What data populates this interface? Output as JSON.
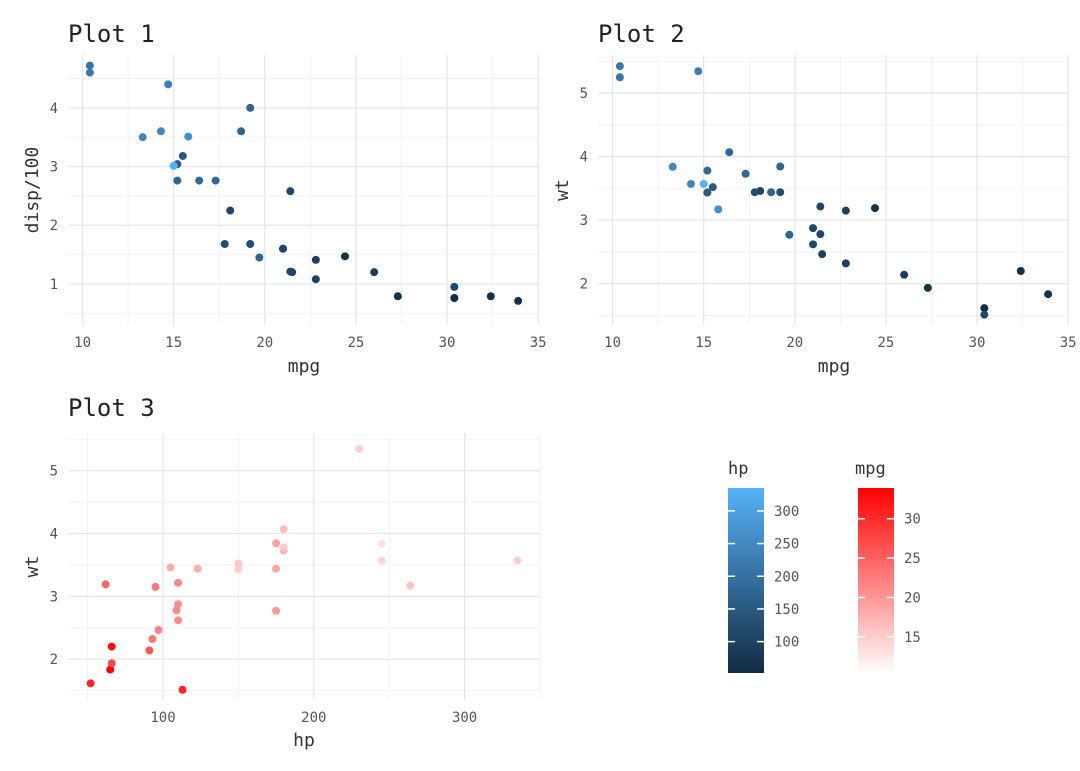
{
  "chart_data": [
    {
      "type": "scatter",
      "title": "Plot 1",
      "xlabel": "mpg",
      "ylabel": "disp/100",
      "xlim": [
        9.2,
        35.1
      ],
      "ylim": [
        0.3,
        4.9
      ],
      "xticks": [
        10,
        15,
        20,
        25,
        30,
        35
      ],
      "yticks": [
        1,
        2,
        3,
        4
      ],
      "color_by": "hp",
      "grid": true,
      "points": [
        {
          "x": 21.0,
          "y": 1.6,
          "c": 110
        },
        {
          "x": 21.0,
          "y": 1.6,
          "c": 110
        },
        {
          "x": 22.8,
          "y": 1.08,
          "c": 93
        },
        {
          "x": 21.4,
          "y": 2.58,
          "c": 110
        },
        {
          "x": 18.7,
          "y": 3.6,
          "c": 175
        },
        {
          "x": 18.1,
          "y": 2.25,
          "c": 105
        },
        {
          "x": 14.3,
          "y": 3.6,
          "c": 245
        },
        {
          "x": 24.4,
          "y": 1.47,
          "c": 62
        },
        {
          "x": 22.8,
          "y": 1.41,
          "c": 95
        },
        {
          "x": 19.2,
          "y": 1.68,
          "c": 123
        },
        {
          "x": 17.8,
          "y": 1.68,
          "c": 123
        },
        {
          "x": 16.4,
          "y": 2.76,
          "c": 180
        },
        {
          "x": 17.3,
          "y": 2.76,
          "c": 180
        },
        {
          "x": 15.2,
          "y": 2.76,
          "c": 180
        },
        {
          "x": 10.4,
          "y": 4.72,
          "c": 205
        },
        {
          "x": 10.4,
          "y": 4.6,
          "c": 215
        },
        {
          "x": 14.7,
          "y": 4.4,
          "c": 230
        },
        {
          "x": 32.4,
          "y": 0.79,
          "c": 66
        },
        {
          "x": 30.4,
          "y": 0.76,
          "c": 52
        },
        {
          "x": 33.9,
          "y": 0.71,
          "c": 65
        },
        {
          "x": 21.5,
          "y": 1.2,
          "c": 97
        },
        {
          "x": 15.5,
          "y": 3.18,
          "c": 150
        },
        {
          "x": 15.2,
          "y": 3.04,
          "c": 150
        },
        {
          "x": 13.3,
          "y": 3.5,
          "c": 245
        },
        {
          "x": 19.2,
          "y": 4.0,
          "c": 175
        },
        {
          "x": 27.3,
          "y": 0.79,
          "c": 66
        },
        {
          "x": 26.0,
          "y": 1.2,
          "c": 91
        },
        {
          "x": 30.4,
          "y": 0.95,
          "c": 113
        },
        {
          "x": 15.8,
          "y": 3.51,
          "c": 264
        },
        {
          "x": 19.7,
          "y": 1.45,
          "c": 175
        },
        {
          "x": 15.0,
          "y": 3.01,
          "c": 335
        },
        {
          "x": 21.4,
          "y": 1.21,
          "c": 109
        }
      ]
    },
    {
      "type": "scatter",
      "title": "Plot 2",
      "xlabel": "mpg",
      "ylabel": "wt",
      "xlim": [
        9.2,
        35.1
      ],
      "ylim": [
        1.35,
        5.6
      ],
      "xticks": [
        10,
        15,
        20,
        25,
        30,
        35
      ],
      "yticks": [
        2,
        3,
        4,
        5
      ],
      "color_by": "hp",
      "grid": true,
      "points": [
        {
          "x": 21.0,
          "y": 2.62,
          "c": 110
        },
        {
          "x": 21.0,
          "y": 2.875,
          "c": 110
        },
        {
          "x": 22.8,
          "y": 2.32,
          "c": 93
        },
        {
          "x": 21.4,
          "y": 3.215,
          "c": 110
        },
        {
          "x": 18.7,
          "y": 3.44,
          "c": 175
        },
        {
          "x": 18.1,
          "y": 3.46,
          "c": 105
        },
        {
          "x": 14.3,
          "y": 3.57,
          "c": 245
        },
        {
          "x": 24.4,
          "y": 3.19,
          "c": 62
        },
        {
          "x": 22.8,
          "y": 3.15,
          "c": 95
        },
        {
          "x": 19.2,
          "y": 3.44,
          "c": 123
        },
        {
          "x": 17.8,
          "y": 3.44,
          "c": 123
        },
        {
          "x": 16.4,
          "y": 4.07,
          "c": 180
        },
        {
          "x": 17.3,
          "y": 3.73,
          "c": 180
        },
        {
          "x": 15.2,
          "y": 3.78,
          "c": 180
        },
        {
          "x": 10.4,
          "y": 5.25,
          "c": 205
        },
        {
          "x": 10.4,
          "y": 5.424,
          "c": 215
        },
        {
          "x": 14.7,
          "y": 5.345,
          "c": 230
        },
        {
          "x": 32.4,
          "y": 2.2,
          "c": 66
        },
        {
          "x": 30.4,
          "y": 1.615,
          "c": 52
        },
        {
          "x": 33.9,
          "y": 1.835,
          "c": 65
        },
        {
          "x": 21.5,
          "y": 2.465,
          "c": 97
        },
        {
          "x": 15.5,
          "y": 3.52,
          "c": 150
        },
        {
          "x": 15.2,
          "y": 3.435,
          "c": 150
        },
        {
          "x": 13.3,
          "y": 3.84,
          "c": 245
        },
        {
          "x": 19.2,
          "y": 3.845,
          "c": 175
        },
        {
          "x": 27.3,
          "y": 1.935,
          "c": 66
        },
        {
          "x": 26.0,
          "y": 2.14,
          "c": 91
        },
        {
          "x": 30.4,
          "y": 1.513,
          "c": 113
        },
        {
          "x": 15.8,
          "y": 3.17,
          "c": 264
        },
        {
          "x": 19.7,
          "y": 2.77,
          "c": 175
        },
        {
          "x": 15.0,
          "y": 3.57,
          "c": 335
        },
        {
          "x": 21.4,
          "y": 2.78,
          "c": 109
        }
      ]
    },
    {
      "type": "scatter",
      "title": "Plot 3",
      "xlabel": "hp",
      "ylabel": "wt",
      "xlim": [
        37,
        350
      ],
      "ylim": [
        1.35,
        5.6
      ],
      "xticks": [
        100,
        200,
        300
      ],
      "yticks": [
        2,
        3,
        4,
        5
      ],
      "color_by": "mpg",
      "grid": true,
      "points": [
        {
          "x": 110,
          "y": 2.62,
          "c": 21.0
        },
        {
          "x": 110,
          "y": 2.875,
          "c": 21.0
        },
        {
          "x": 93,
          "y": 2.32,
          "c": 22.8
        },
        {
          "x": 110,
          "y": 3.215,
          "c": 21.4
        },
        {
          "x": 175,
          "y": 3.44,
          "c": 18.7
        },
        {
          "x": 105,
          "y": 3.46,
          "c": 18.1
        },
        {
          "x": 245,
          "y": 3.57,
          "c": 14.3
        },
        {
          "x": 62,
          "y": 3.19,
          "c": 24.4
        },
        {
          "x": 95,
          "y": 3.15,
          "c": 22.8
        },
        {
          "x": 123,
          "y": 3.44,
          "c": 19.2
        },
        {
          "x": 123,
          "y": 3.44,
          "c": 17.8
        },
        {
          "x": 180,
          "y": 4.07,
          "c": 16.4
        },
        {
          "x": 180,
          "y": 3.73,
          "c": 17.3
        },
        {
          "x": 180,
          "y": 3.78,
          "c": 15.2
        },
        {
          "x": 205,
          "y": 5.25,
          "c": 10.4
        },
        {
          "x": 215,
          "y": 5.424,
          "c": 10.4
        },
        {
          "x": 230,
          "y": 5.345,
          "c": 14.7
        },
        {
          "x": 66,
          "y": 2.2,
          "c": 32.4
        },
        {
          "x": 52,
          "y": 1.615,
          "c": 30.4
        },
        {
          "x": 65,
          "y": 1.835,
          "c": 33.9
        },
        {
          "x": 97,
          "y": 2.465,
          "c": 21.5
        },
        {
          "x": 150,
          "y": 3.52,
          "c": 15.5
        },
        {
          "x": 150,
          "y": 3.435,
          "c": 15.2
        },
        {
          "x": 245,
          "y": 3.84,
          "c": 13.3
        },
        {
          "x": 175,
          "y": 3.845,
          "c": 19.2
        },
        {
          "x": 66,
          "y": 1.935,
          "c": 27.3
        },
        {
          "x": 91,
          "y": 2.14,
          "c": 26.0
        },
        {
          "x": 113,
          "y": 1.513,
          "c": 30.4
        },
        {
          "x": 264,
          "y": 3.17,
          "c": 15.8
        },
        {
          "x": 175,
          "y": 2.77,
          "c": 19.7
        },
        {
          "x": 335,
          "y": 3.57,
          "c": 15.0
        },
        {
          "x": 109,
          "y": 2.78,
          "c": 21.4
        }
      ]
    }
  ],
  "legends": [
    {
      "title": "hp",
      "min": 52,
      "max": 335,
      "ticks": [
        100,
        150,
        200,
        250,
        300
      ],
      "low_color": "#132B43",
      "high_color": "#56B1F7"
    },
    {
      "title": "mpg",
      "min": 10.4,
      "max": 33.9,
      "ticks": [
        15,
        20,
        25,
        30
      ],
      "low_color": "#FFFFFF",
      "high_color": "#FF0000"
    }
  ]
}
